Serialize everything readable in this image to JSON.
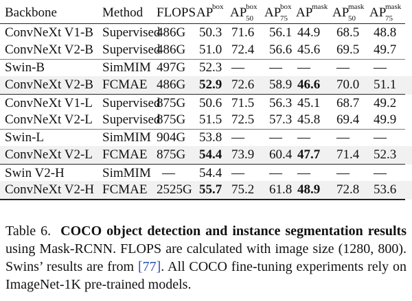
{
  "table": {
    "headers": {
      "backbone": "Backbone",
      "method": "Method",
      "flops": "FLOPS",
      "ap_box": {
        "base": "AP",
        "sup": "box"
      },
      "ap50_box": {
        "base": "AP",
        "sub": "50",
        "sup": "box"
      },
      "ap75_box": {
        "base": "AP",
        "sub": "75",
        "sup": "box"
      },
      "ap_mask": {
        "base": "AP",
        "sup": "mask"
      },
      "ap50_mask": {
        "base": "AP",
        "sub": "50",
        "sup": "mask"
      },
      "ap75_mask": {
        "base": "AP",
        "sub": "75",
        "sup": "mask"
      }
    },
    "rows": [
      {
        "backbone": "ConvNeXt V1-B",
        "method": "Supervised",
        "flops": "486G",
        "ap_box": "50.3",
        "ap50_box": "71.6",
        "ap75_box": "56.1",
        "ap_mask": "44.9",
        "ap50_mask": "68.5",
        "ap75_mask": "48.8"
      },
      {
        "backbone": "ConvNeXt V2-B",
        "method": "Supervised",
        "flops": "486G",
        "ap_box": "51.0",
        "ap50_box": "72.4",
        "ap75_box": "56.6",
        "ap_mask": "45.6",
        "ap50_mask": "69.5",
        "ap75_mask": "49.7"
      },
      {
        "backbone": "Swin-B",
        "method": "SimMIM",
        "flops": "497G",
        "ap_box": "52.3",
        "ap50_box": "—",
        "ap75_box": "—",
        "ap_mask": "—",
        "ap50_mask": "—",
        "ap75_mask": "—"
      },
      {
        "backbone": "ConvNeXt V2-B",
        "method": "FCMAE",
        "flops": "486G",
        "ap_box": "52.9",
        "ap50_box": "72.6",
        "ap75_box": "58.9",
        "ap_mask": "46.6",
        "ap50_mask": "70.0",
        "ap75_mask": "51.1"
      },
      {
        "backbone": "ConvNeXt V1-L",
        "method": "Supervised",
        "flops": "875G",
        "ap_box": "50.6",
        "ap50_box": "71.5",
        "ap75_box": "56.3",
        "ap_mask": "45.1",
        "ap50_mask": "68.7",
        "ap75_mask": "49.2"
      },
      {
        "backbone": "ConvNeXt V2-L",
        "method": "Supervised",
        "flops": "875G",
        "ap_box": "51.5",
        "ap50_box": "72.5",
        "ap75_box": "57.3",
        "ap_mask": "45.8",
        "ap50_mask": "69.4",
        "ap75_mask": "49.9"
      },
      {
        "backbone": "Swin-L",
        "method": "SimMIM",
        "flops": "904G",
        "ap_box": "53.8",
        "ap50_box": "—",
        "ap75_box": "—",
        "ap_mask": "—",
        "ap50_mask": "—",
        "ap75_mask": "—"
      },
      {
        "backbone": "ConvNeXt V2-L",
        "method": "FCMAE",
        "flops": "875G",
        "ap_box": "54.4",
        "ap50_box": "73.9",
        "ap75_box": "60.4",
        "ap_mask": "47.7",
        "ap50_mask": "71.4",
        "ap75_mask": "52.3"
      },
      {
        "backbone": "Swin V2-H",
        "method": "SimMIM",
        "flops": "—",
        "ap_box": "54.4",
        "ap50_box": "—",
        "ap75_box": "—",
        "ap_mask": "—",
        "ap50_mask": "—",
        "ap75_mask": "—"
      },
      {
        "backbone": "ConvNeXt V2-H",
        "method": "FCMAE",
        "flops": "2525G",
        "ap_box": "55.7",
        "ap50_box": "75.2",
        "ap75_box": "61.8",
        "ap_mask": "48.9",
        "ap50_mask": "72.8",
        "ap75_mask": "53.6"
      }
    ]
  },
  "caption": {
    "label": "Table 6.",
    "bold_title": "COCO object detection and instance segmentation results",
    "text_a": " using Mask-RCNN. FLOPS are calculated with image size (1280, 800). Swins’ results are from ",
    "ref": "[77]",
    "text_b": ". All COCO fine-tuning experiments rely on ImageNet-1K pre-trained models."
  }
}
